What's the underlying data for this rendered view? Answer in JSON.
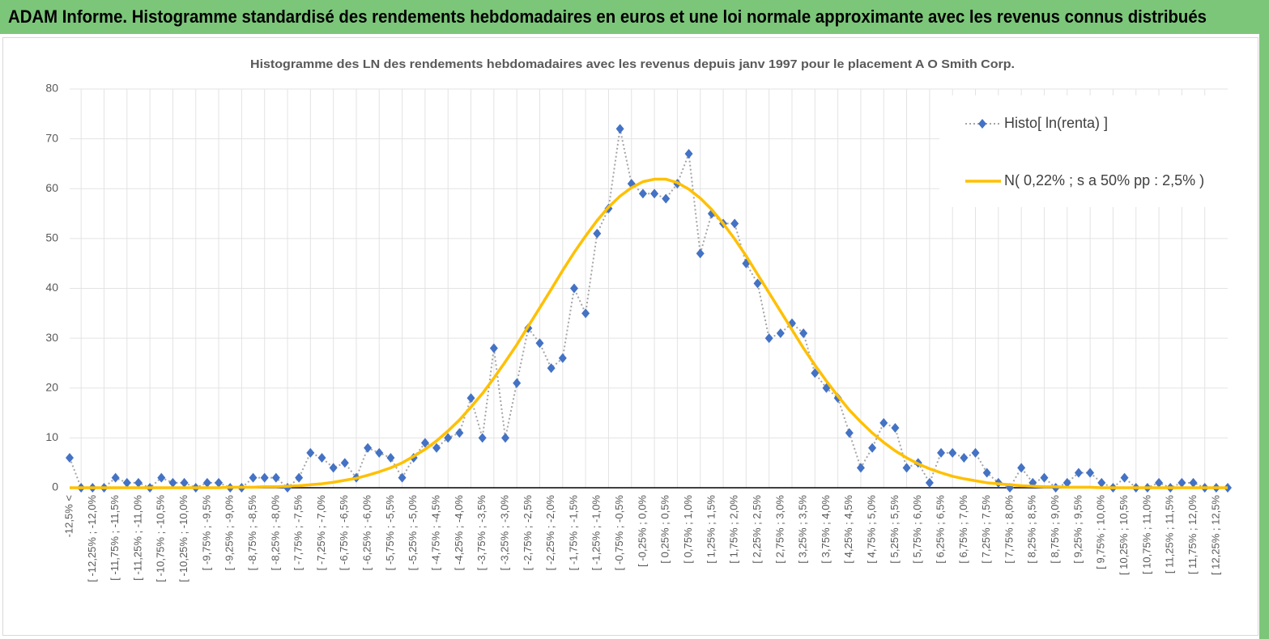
{
  "header": {
    "title": "ADAM Informe. Histogramme standardisé des rendements hebdomadaires en euros et une loi normale approximante avec les revenus connus distribués"
  },
  "chart_data": {
    "type": "line",
    "title": "Histogramme des LN des rendements hebdomadaires avec les revenus depuis janv 1997 pour le placement A O Smith Corp.",
    "categories": [
      "-12,5% <",
      null,
      "[ -12,25% ; -12,0%",
      null,
      "[ -11,75% ; -11,5%",
      null,
      "[ -11,25% ; -11,0%",
      null,
      "[ -10,75% ; -10,5%",
      null,
      "[ -10,25% ; -10,0%",
      null,
      "[ -9,75% ; -9,5%",
      null,
      "[ -9,25% ; -9,0%",
      null,
      "[ -8,75% ; -8,5%",
      null,
      "[ -8,25% ; -8,0%",
      null,
      "[ -7,75% ; -7,5%",
      null,
      "[ -7,25% ; -7,0%",
      null,
      "[ -6,75% ; -6,5%",
      null,
      "[ -6,25% ; -6,0%",
      null,
      "[ -5,75% ; -5,5%",
      null,
      "[ -5,25% ; -5,0%",
      null,
      "[ -4,75% ; -4,5%",
      null,
      "[ -4,25% ; -4,0%",
      null,
      "[ -3,75% ; -3,5%",
      null,
      "[ -3,25% ; -3,0%",
      null,
      "[ -2,75% ; -2,5%",
      null,
      "[ -2,25% ; -2,0%",
      null,
      "[ -1,75% ; -1,5%",
      null,
      "[ -1,25% ; -1,0%",
      null,
      "[ -0,75% ; -0,5%",
      null,
      "[ -0,25% ; 0,0%",
      null,
      "[ 0,25% ; 0,5%",
      null,
      "[ 0,75% ; 1,0%",
      null,
      "[ 1,25% ; 1,5%",
      null,
      "[ 1,75% ; 2,0%",
      null,
      "[ 2,25% ; 2,5%",
      null,
      "[ 2,75% ; 3,0%",
      null,
      "[ 3,25% ; 3,5%",
      null,
      "[ 3,75% ; 4,0%",
      null,
      "[ 4,25% ; 4,5%",
      null,
      "[ 4,75% ; 5,0%",
      null,
      "[ 5,25% ; 5,5%",
      null,
      "[ 5,75% ; 6,0%",
      null,
      "[ 6,25% ; 6,5%",
      null,
      "[ 6,75% ; 7,0%",
      null,
      "[ 7,25% ; 7,5%",
      null,
      "[ 7,75% ; 8,0%",
      null,
      "[ 8,25% ; 8,5%",
      null,
      "[ 8,75% ; 9,0%",
      null,
      "[ 9,25% ; 9,5%",
      null,
      "[ 9,75% ; 10,0%",
      null,
      "[ 10,25% ; 10,5%",
      null,
      "[ 10,75% ; 11,0%",
      null,
      "[ 11,25% ; 11,5%",
      null,
      "[ 11,75% ; 12,0%",
      null,
      "[ 12,25% ; 12,5%",
      null
    ],
    "series": [
      {
        "name": "Histo[ ln(renta) ]",
        "color": "#4472c4",
        "marker": "diamond",
        "line_color": "#a5a5a5",
        "dash": "dotted",
        "values": [
          6,
          0,
          0,
          0,
          2,
          1,
          1,
          0,
          2,
          1,
          1,
          0,
          1,
          1,
          0,
          0,
          2,
          2,
          2,
          0,
          2,
          7,
          6,
          4,
          5,
          2,
          8,
          7,
          6,
          2,
          6,
          9,
          8,
          10,
          11,
          18,
          10,
          28,
          10,
          21,
          32,
          29,
          24,
          26,
          40,
          35,
          51,
          56,
          72,
          61,
          59,
          59,
          58,
          61,
          67,
          47,
          55,
          53,
          53,
          45,
          41,
          30,
          31,
          33,
          31,
          23,
          20,
          18,
          11,
          4,
          8,
          13,
          12,
          4,
          5,
          1,
          7,
          7,
          6,
          7,
          3,
          1,
          0,
          4,
          1,
          2,
          0,
          1,
          3,
          3,
          1,
          0,
          2,
          0,
          0,
          1,
          0,
          1,
          1,
          0,
          0,
          0
        ]
      },
      {
        "name": "N( 0,22% ; s a 50% pp : 2,5% )",
        "color": "#ffc000",
        "values": [
          0,
          0,
          0,
          0,
          0,
          0,
          0,
          0,
          0,
          0,
          0,
          0,
          0,
          0,
          0.1,
          0.1,
          0.1,
          0.2,
          0.2,
          0.3,
          0.4,
          0.6,
          0.8,
          1.1,
          1.5,
          1.9,
          2.5,
          3.2,
          4.0,
          5.0,
          6.3,
          7.7,
          9.4,
          11.4,
          13.6,
          16.2,
          18.9,
          22.0,
          25.3,
          28.7,
          32.4,
          36.1,
          39.8,
          43.6,
          47.2,
          50.5,
          53.6,
          56.3,
          58.5,
          60.2,
          61.4,
          61.9,
          61.9,
          61.2,
          59.9,
          58.1,
          55.8,
          53.0,
          49.9,
          46.5,
          42.8,
          39.1,
          35.4,
          31.7,
          28.0,
          24.6,
          21.4,
          18.4,
          15.6,
          13.2,
          11.0,
          9.1,
          7.4,
          6.0,
          4.8,
          3.8,
          3.0,
          2.3,
          1.8,
          1.4,
          1.0,
          0.8,
          0.6,
          0.4,
          0.3,
          0.2,
          0.2,
          0.1,
          0.1,
          0.1,
          0,
          0,
          0,
          0,
          0,
          0,
          0,
          0,
          0,
          0,
          0,
          0
        ]
      }
    ],
    "ylim": [
      0,
      80
    ],
    "yticks": [
      0,
      10,
      20,
      30,
      40,
      50,
      60,
      70,
      80
    ],
    "grid": true,
    "legend": "upper right"
  }
}
